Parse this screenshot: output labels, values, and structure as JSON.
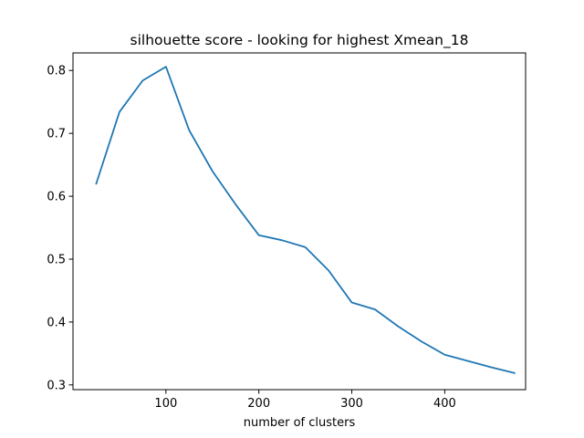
{
  "chart_data": {
    "type": "line",
    "title": "silhouette score - looking for highest Xmean_18",
    "xlabel": "number of clusters",
    "ylabel": "",
    "xlim": [
      0,
      487
    ],
    "ylim": [
      0.2925,
      0.8279
    ],
    "xticks": [
      100,
      200,
      300,
      400
    ],
    "yticks": [
      0.3,
      0.4,
      0.5,
      0.6,
      0.7,
      0.8
    ],
    "grid": false,
    "series": [
      {
        "color": "#1f77b4",
        "x": [
          25,
          50,
          75,
          100,
          125,
          150,
          175,
          200,
          225,
          250,
          275,
          300,
          325,
          350,
          375,
          400,
          425,
          450,
          475
        ],
        "y": [
          0.62,
          0.734,
          0.784,
          0.806,
          0.705,
          0.64,
          0.587,
          0.538,
          0.53,
          0.519,
          0.482,
          0.431,
          0.42,
          0.393,
          0.369,
          0.348,
          0.338,
          0.328,
          0.319
        ]
      }
    ]
  }
}
